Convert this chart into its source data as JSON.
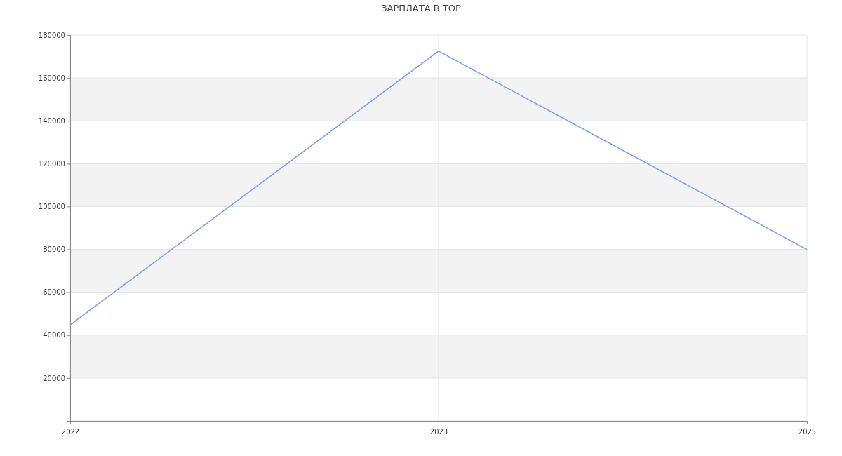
{
  "chart_data": {
    "type": "line",
    "title": "ЗАРПЛАТА В TOP",
    "categories": [
      "2022",
      "2023",
      "2025"
    ],
    "series": [
      {
        "color": "#6f9cf5",
        "values": [
          44800,
          172500,
          80000
        ]
      }
    ],
    "ylim": [
      0,
      180000
    ],
    "yticks": [
      {
        "value": 0,
        "label": null
      },
      20000,
      40000,
      60000,
      80000,
      100000,
      120000,
      140000,
      160000,
      180000
    ],
    "grid": true,
    "marker": "none",
    "line_style": "solid"
  }
}
